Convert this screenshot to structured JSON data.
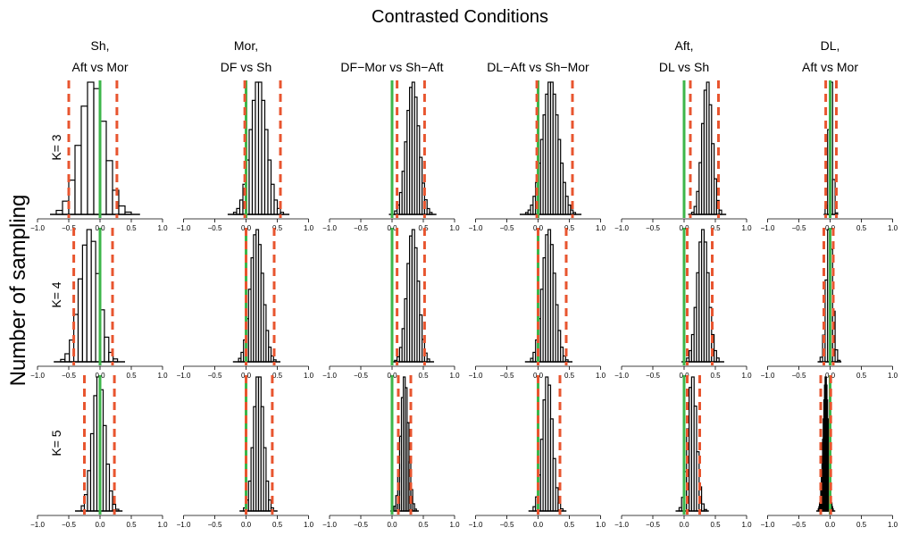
{
  "figure": {
    "title": "Contrasted Conditions",
    "ylabel": "Number of sampling",
    "row_labels": [
      "K= 3",
      "K= 4",
      "K= 5"
    ],
    "column_titles": [
      {
        "line1": "Sh,",
        "line2": "Aft vs Mor"
      },
      {
        "line1": "Mor,",
        "line2": "DF vs Sh"
      },
      {
        "line1": "",
        "line2": "DF−Mor vs Sh−Aft"
      },
      {
        "line1": "",
        "line2": "DL−Aft vs Sh−Mor"
      },
      {
        "line1": "Aft,",
        "line2": "DL vs Sh"
      },
      {
        "line1": "DL,",
        "line2": "Aft vs Mor"
      }
    ]
  },
  "chart_data": {
    "type": "bar",
    "subtype": "histogram-grid",
    "rows": 3,
    "cols": 6,
    "xlim": [
      -1.0,
      1.0
    ],
    "xticks": [
      -1.0,
      -0.5,
      0.0,
      0.5,
      1.0
    ],
    "xtick_labels": [
      "−1.0",
      "−0.5",
      "0.0",
      "0.5",
      "1.0"
    ],
    "reference_line": {
      "x": 0.0,
      "color": "#3cb64a",
      "style": "solid"
    },
    "interval_lines": {
      "color": "#e8552f",
      "style": "dashed"
    },
    "bar_color": "#ffffff",
    "bar_edge": "#000000",
    "panels": [
      {
        "row": 0,
        "col": 0,
        "mean": -0.12,
        "sd": 0.2,
        "bin": 0.1,
        "ci": [
          -0.5,
          0.27
        ]
      },
      {
        "row": 0,
        "col": 1,
        "mean": 0.2,
        "sd": 0.13,
        "bin": 0.05,
        "ci": [
          -0.02,
          0.55
        ]
      },
      {
        "row": 0,
        "col": 2,
        "mean": 0.33,
        "sd": 0.1,
        "bin": 0.04,
        "ci": [
          0.08,
          0.52
        ]
      },
      {
        "row": 0,
        "col": 3,
        "mean": 0.2,
        "sd": 0.13,
        "bin": 0.04,
        "ci": [
          -0.02,
          0.55
        ]
      },
      {
        "row": 0,
        "col": 4,
        "mean": 0.37,
        "sd": 0.08,
        "bin": 0.04,
        "ci": [
          0.1,
          0.55
        ]
      },
      {
        "row": 0,
        "col": 5,
        "mean": 0.01,
        "sd": 0.03,
        "bin": 0.04,
        "ci": [
          -0.07,
          0.1
        ]
      },
      {
        "row": 1,
        "col": 0,
        "mean": -0.17,
        "sd": 0.15,
        "bin": 0.07,
        "ci": [
          -0.42,
          0.2
        ]
      },
      {
        "row": 1,
        "col": 1,
        "mean": 0.17,
        "sd": 0.1,
        "bin": 0.04,
        "ci": [
          0.0,
          0.45
        ]
      },
      {
        "row": 1,
        "col": 2,
        "mean": 0.33,
        "sd": 0.09,
        "bin": 0.04,
        "ci": [
          0.08,
          0.52
        ]
      },
      {
        "row": 1,
        "col": 3,
        "mean": 0.17,
        "sd": 0.1,
        "bin": 0.04,
        "ci": [
          0.0,
          0.45
        ]
      },
      {
        "row": 1,
        "col": 4,
        "mean": 0.3,
        "sd": 0.09,
        "bin": 0.04,
        "ci": [
          0.05,
          0.45
        ]
      },
      {
        "row": 1,
        "col": 5,
        "mean": -0.01,
        "sd": 0.05,
        "bin": 0.04,
        "ci": [
          -0.1,
          0.05
        ]
      },
      {
        "row": 2,
        "col": 0,
        "mean": -0.02,
        "sd": 0.1,
        "bin": 0.05,
        "ci": [
          -0.25,
          0.23
        ]
      },
      {
        "row": 2,
        "col": 1,
        "mean": 0.2,
        "sd": 0.08,
        "bin": 0.04,
        "ci": [
          0.0,
          0.42
        ]
      },
      {
        "row": 2,
        "col": 2,
        "mean": 0.2,
        "sd": 0.06,
        "bin": 0.03,
        "ci": [
          0.1,
          0.3
        ]
      },
      {
        "row": 2,
        "col": 3,
        "mean": 0.15,
        "sd": 0.08,
        "bin": 0.04,
        "ci": [
          0.0,
          0.35
        ]
      },
      {
        "row": 2,
        "col": 4,
        "mean": 0.13,
        "sd": 0.07,
        "bin": 0.04,
        "ci": [
          0.05,
          0.25
        ]
      },
      {
        "row": 2,
        "col": 5,
        "mean": -0.07,
        "sd": 0.04,
        "bin": 0.01,
        "ci": [
          -0.15,
          0.01
        ],
        "filled": true
      }
    ]
  }
}
